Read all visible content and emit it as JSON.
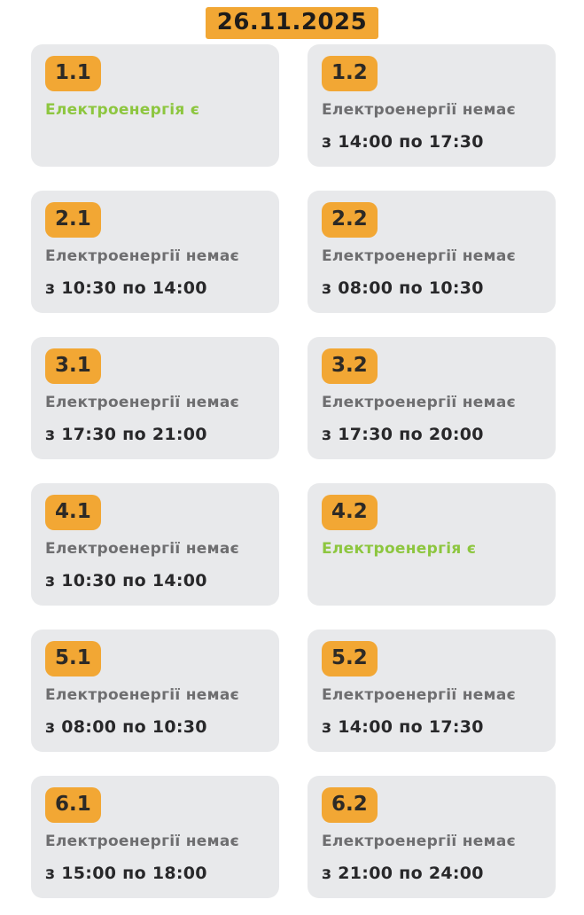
{
  "header": {
    "date": "26.11.2025"
  },
  "colors": {
    "accent_orange": "#F2A734",
    "card_bg": "#E8E9EB",
    "green": "#8DC63F",
    "gray_text": "#6E6E70",
    "dark_text": "#28282A",
    "page_bg": "#FFFFFF"
  },
  "labels": {
    "power_on": "Електроенергія є",
    "power_off": "Електроенергії немає"
  },
  "groups": [
    {
      "id": "1.1",
      "status": "on",
      "status_text": "Електроенергія є",
      "time": ""
    },
    {
      "id": "1.2",
      "status": "off",
      "status_text": "Електроенергії немає",
      "time": "з 14:00 по 17:30"
    },
    {
      "id": "2.1",
      "status": "off",
      "status_text": "Електроенергії немає",
      "time": "з 10:30 по 14:00"
    },
    {
      "id": "2.2",
      "status": "off",
      "status_text": "Електроенергії немає",
      "time": "з 08:00 по 10:30"
    },
    {
      "id": "3.1",
      "status": "off",
      "status_text": "Електроенергії немає",
      "time": "з 17:30 по 21:00"
    },
    {
      "id": "3.2",
      "status": "off",
      "status_text": "Електроенергії немає",
      "time": "з 17:30 по 20:00"
    },
    {
      "id": "4.1",
      "status": "off",
      "status_text": "Електроенергії немає",
      "time": "з 10:30 по 14:00"
    },
    {
      "id": "4.2",
      "status": "on",
      "status_text": "Електроенергія є",
      "time": ""
    },
    {
      "id": "5.1",
      "status": "off",
      "status_text": "Електроенергії немає",
      "time": "з 08:00 по 10:30"
    },
    {
      "id": "5.2",
      "status": "off",
      "status_text": "Електроенергії немає",
      "time": "з 14:00 по 17:30"
    },
    {
      "id": "6.1",
      "status": "off",
      "status_text": "Електроенергії немає",
      "time": "з 15:00 по 18:00"
    },
    {
      "id": "6.2",
      "status": "off",
      "status_text": "Електроенергії немає",
      "time": "з 21:00 по 24:00"
    }
  ]
}
